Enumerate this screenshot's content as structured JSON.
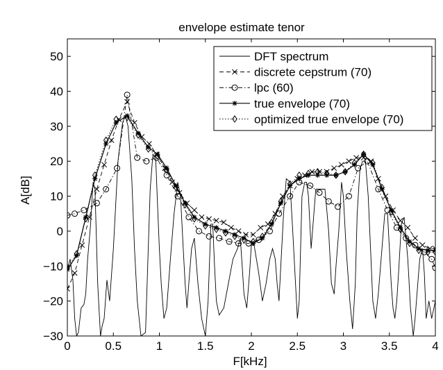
{
  "chart_data": {
    "type": "line",
    "title": "envelope estimate tenor",
    "xlabel": "F[kHz]",
    "ylabel": "A[dB]",
    "xlim": [
      0,
      4
    ],
    "ylim": [
      -30,
      55
    ],
    "xticks": [
      0,
      0.5,
      1,
      1.5,
      2,
      2.5,
      3,
      3.5,
      4
    ],
    "xtick_labels": [
      "0",
      "0.5",
      "1",
      "1.5",
      "2",
      "2.5",
      "3",
      "3.5",
      "4"
    ],
    "yticks": [
      -30,
      -20,
      -10,
      0,
      10,
      20,
      30,
      40,
      50
    ],
    "ytick_labels": [
      "−30",
      "−20",
      "−10",
      "0",
      "10",
      "20",
      "30",
      "40",
      "50"
    ],
    "grid": false,
    "legend_position": "top-right",
    "series": [
      {
        "name": "DFT spectrum",
        "style": "solid",
        "marker": "none",
        "x": [
          0,
          0.03,
          0.06,
          0.08,
          0.1,
          0.12,
          0.15,
          0.18,
          0.2,
          0.22,
          0.25,
          0.28,
          0.3,
          0.33,
          0.36,
          0.38,
          0.4,
          0.43,
          0.46,
          0.5,
          0.55,
          0.6,
          0.63,
          0.66,
          0.7,
          0.73,
          0.76,
          0.8,
          0.85,
          0.9,
          0.93,
          0.96,
          0.98,
          1.0,
          1.02,
          1.05,
          1.08,
          1.12,
          1.16,
          1.2,
          1.23,
          1.26,
          1.28,
          1.3,
          1.32,
          1.35,
          1.38,
          1.42,
          1.46,
          1.5,
          1.53,
          1.56,
          1.58,
          1.6,
          1.62,
          1.65,
          1.7,
          1.75,
          1.8,
          1.85,
          1.88,
          1.9,
          1.92,
          1.95,
          1.98,
          2.0,
          2.03,
          2.08,
          2.12,
          2.16,
          2.2,
          2.23,
          2.26,
          2.28,
          2.3,
          2.32,
          2.35,
          2.38,
          2.42,
          2.45,
          2.48,
          2.5,
          2.52,
          2.55,
          2.58,
          2.6,
          2.62,
          2.65,
          2.7,
          2.75,
          2.8,
          2.84,
          2.87,
          2.9,
          2.92,
          2.95,
          2.98,
          3.0,
          3.03,
          3.07,
          3.1,
          3.13,
          3.15,
          3.18,
          3.21,
          3.24,
          3.27,
          3.3,
          3.32,
          3.35,
          3.38,
          3.42,
          3.45,
          3.48,
          3.5,
          3.52,
          3.54,
          3.56,
          3.58,
          3.6,
          3.63,
          3.66,
          3.7,
          3.73,
          3.76,
          3.78,
          3.8,
          3.83,
          3.86,
          3.88,
          3.9,
          3.93,
          3.96,
          4.0
        ],
        "y": [
          -11,
          -8,
          -14,
          -25,
          -30,
          -29,
          -22,
          -21,
          -18,
          -8,
          1,
          14,
          12,
          -15,
          -30,
          -27,
          -25,
          -14,
          -20,
          -5,
          20,
          31,
          33,
          30,
          15,
          -5,
          -20,
          -30,
          -29,
          12,
          22,
          21,
          8,
          -5,
          -15,
          -25,
          -22,
          -8,
          5,
          14,
          10,
          -5,
          -15,
          -22,
          -15,
          -5,
          -2,
          -15,
          -25,
          -30,
          -20,
          2,
          2,
          -10,
          -20,
          -24,
          -22,
          -15,
          -8,
          -5,
          -2,
          -10,
          -18,
          -22,
          -12,
          -4,
          -4,
          -12,
          -20,
          -15,
          -8,
          -5,
          -8,
          -15,
          -20,
          -10,
          5,
          15,
          14,
          0,
          -15,
          -25,
          -20,
          10,
          14,
          14,
          10,
          -5,
          12,
          12,
          12,
          0,
          -15,
          -18,
          -10,
          0,
          14,
          10,
          -5,
          -20,
          -28,
          -15,
          5,
          18,
          20,
          20,
          10,
          -8,
          -20,
          -25,
          -18,
          -5,
          5,
          5,
          -5,
          -15,
          -22,
          -25,
          -20,
          -12,
          2,
          4,
          -8,
          -22,
          -30,
          -25,
          -18,
          -8,
          -5,
          -12,
          -25,
          -20,
          -25,
          -20
        ]
      },
      {
        "name": "discrete cepstrum (70)",
        "style": "dashed",
        "marker": "x",
        "x": [
          0,
          0.08,
          0.16,
          0.24,
          0.32,
          0.4,
          0.48,
          0.56,
          0.65,
          0.73,
          0.81,
          0.89,
          0.97,
          1.06,
          1.14,
          1.22,
          1.3,
          1.38,
          1.46,
          1.54,
          1.62,
          1.7,
          1.78,
          1.86,
          1.94,
          2.02,
          2.1,
          2.18,
          2.26,
          2.34,
          2.42,
          2.5,
          2.58,
          2.66,
          2.74,
          2.82,
          2.9,
          2.98,
          3.06,
          3.14,
          3.22,
          3.3,
          3.38,
          3.46,
          3.54,
          3.62,
          3.7,
          3.78,
          3.86,
          3.94,
          4.0
        ],
        "y": [
          -16.5,
          -12,
          -4,
          4,
          12,
          19,
          26,
          32,
          37,
          31,
          27,
          25,
          22,
          18,
          14,
          11,
          8,
          6,
          4,
          3.5,
          3,
          2.5,
          1,
          0,
          -1,
          -1,
          1,
          2,
          5,
          10,
          13,
          15,
          16,
          17,
          17,
          17,
          18,
          19,
          20,
          21,
          21,
          20,
          15,
          10,
          6,
          3,
          1,
          -2,
          -4,
          -5,
          -5
        ]
      },
      {
        "name": "lpc (60)",
        "style": "dashdot",
        "marker": "o",
        "x": [
          0,
          0.08,
          0.18,
          0.32,
          0.42,
          0.54,
          0.65,
          0.76,
          0.86,
          0.97,
          1.08,
          1.2,
          1.32,
          1.43,
          1.54,
          1.65,
          1.76,
          1.86,
          1.97,
          2.08,
          2.2,
          2.3,
          2.42,
          2.52,
          2.64,
          2.74,
          2.84,
          2.94,
          3.06,
          3.16,
          3.26,
          3.38,
          3.48,
          3.58,
          3.68,
          3.78,
          3.88,
          3.96,
          4.0
        ],
        "y": [
          4.5,
          5,
          6,
          8,
          12,
          18,
          39,
          21,
          20,
          21,
          16,
          10,
          4,
          0,
          -1.5,
          -2,
          -3,
          -3.5,
          -3.5,
          -2.5,
          0,
          5,
          10,
          14,
          13,
          11,
          8.5,
          7,
          10,
          18,
          20,
          12,
          6,
          1,
          -2,
          -4,
          -6,
          -8,
          -10.5
        ]
      },
      {
        "name": "true envelope (70)",
        "style": "solid",
        "marker": "*",
        "x": [
          0,
          0.1,
          0.2,
          0.3,
          0.42,
          0.53,
          0.65,
          0.77,
          0.88,
          0.98,
          1.08,
          1.18,
          1.28,
          1.38,
          1.5,
          1.62,
          1.72,
          1.82,
          1.92,
          2.02,
          2.12,
          2.22,
          2.32,
          2.42,
          2.52,
          2.62,
          2.72,
          2.82,
          2.92,
          3.02,
          3.12,
          3.22,
          3.32,
          3.42,
          3.52,
          3.62,
          3.72,
          3.82,
          3.92,
          4.0
        ],
        "y": [
          -11,
          -7,
          4,
          15,
          25,
          31,
          33,
          28,
          24,
          22,
          18,
          13,
          8,
          4,
          2,
          1,
          0,
          -1,
          -2,
          -3.5,
          -2,
          2,
          8,
          13,
          15,
          16,
          16,
          16,
          16,
          17,
          19,
          22,
          19,
          12,
          6,
          1,
          -3,
          -5,
          -5.5,
          -5.5
        ]
      },
      {
        "name": "optimized true envelope (70)",
        "style": "dotted",
        "marker": "diamond",
        "x": [
          0,
          0.1,
          0.2,
          0.3,
          0.42,
          0.53,
          0.65,
          0.77,
          0.88,
          0.98,
          1.08,
          1.18,
          1.28,
          1.38,
          1.5,
          1.62,
          1.72,
          1.82,
          1.92,
          2.02,
          2.12,
          2.22,
          2.32,
          2.42,
          2.52,
          2.62,
          2.72,
          2.82,
          2.92,
          3.02,
          3.12,
          3.22,
          3.32,
          3.42,
          3.52,
          3.62,
          3.72,
          3.82,
          3.92,
          4.0
        ],
        "y": [
          -10.5,
          -6.5,
          3.5,
          16,
          26,
          32,
          32.5,
          27.5,
          23.5,
          21.5,
          17.5,
          12.5,
          7.5,
          3.5,
          1.5,
          0.5,
          -0.5,
          -1.5,
          -2.5,
          -3,
          -1.5,
          2.5,
          8.5,
          13.5,
          16,
          16.5,
          17,
          16.5,
          16,
          17,
          19.5,
          22,
          19.5,
          12.5,
          5.5,
          0.5,
          -3.5,
          -5.5,
          -6,
          -6
        ]
      }
    ]
  }
}
